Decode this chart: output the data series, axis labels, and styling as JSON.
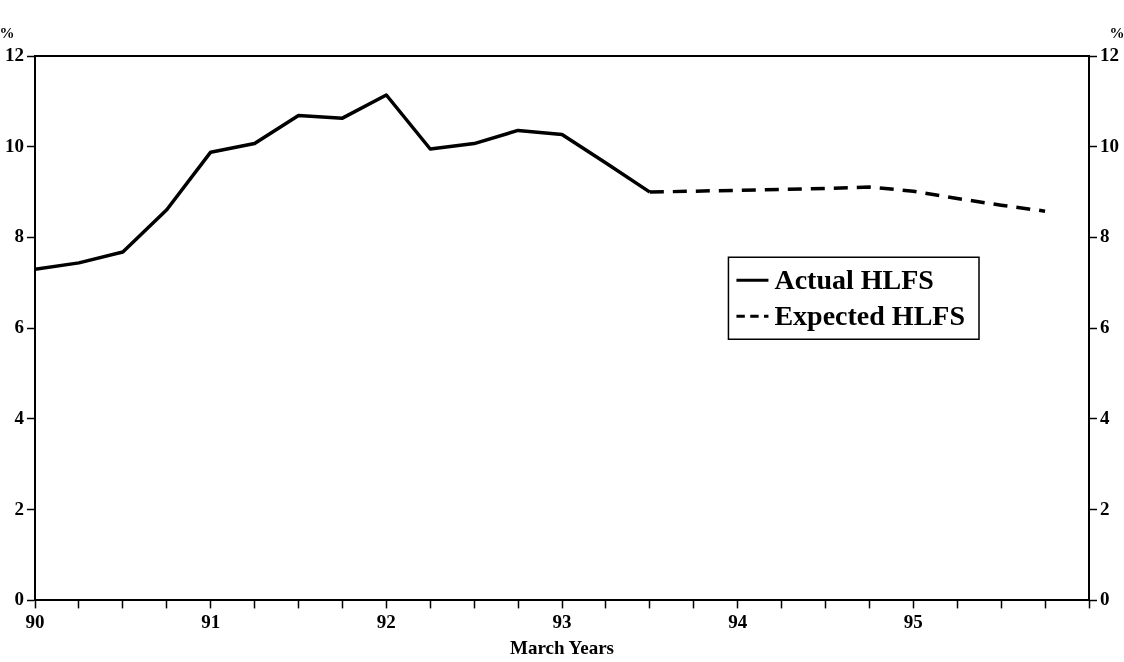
{
  "chart_data": {
    "type": "line",
    "xlabel": "March Years",
    "ylabel": "%",
    "y2label": "%",
    "xlim": [
      90,
      96
    ],
    "xticks": [
      90,
      {
        "value": 90.25,
        "label": null
      },
      {
        "value": 90.5,
        "label": null
      },
      {
        "value": 90.75,
        "label": null
      },
      91,
      {
        "value": 91.25,
        "label": null
      },
      {
        "value": 91.5,
        "label": null
      },
      {
        "value": 91.75,
        "label": null
      },
      92,
      {
        "value": 92.25,
        "label": null
      },
      {
        "value": 92.5,
        "label": null
      },
      {
        "value": 92.75,
        "label": null
      },
      93,
      {
        "value": 93.25,
        "label": null
      },
      {
        "value": 93.5,
        "label": null
      },
      {
        "value": 93.75,
        "label": null
      },
      94,
      {
        "value": 94.25,
        "label": null
      },
      {
        "value": 94.5,
        "label": null
      },
      {
        "value": 94.75,
        "label": null
      },
      95,
      {
        "value": 95.25,
        "label": null
      },
      {
        "value": 95.5,
        "label": null
      },
      {
        "value": 95.75,
        "label": null
      },
      {
        "value": 96,
        "label": null
      }
    ],
    "ylim": [
      0,
      12
    ],
    "yticks": [
      0,
      2,
      4,
      6,
      8,
      10,
      12
    ],
    "y2lim": [
      0,
      12
    ],
    "y2ticks": [
      0,
      2,
      4,
      6,
      8,
      10,
      12
    ],
    "grid": false,
    "legend": "right",
    "marker": "none",
    "series": [
      {
        "name": "Actual HLFS",
        "color": "#000000",
        "line_style": "solid",
        "x": [
          90,
          90.25,
          90.5,
          90.75,
          91,
          91.25,
          91.5,
          91.75,
          92,
          92.25,
          92.5,
          92.75,
          93,
          93.25,
          93.5
        ],
        "values": [
          7.3,
          7.44,
          7.68,
          8.61,
          9.88,
          10.07,
          10.69,
          10.63,
          11.14,
          9.95,
          10.07,
          10.36,
          10.27,
          9.64,
          9.0
        ]
      },
      {
        "name": "Expected HLFS",
        "color": "#000000",
        "line_style": "dashed",
        "x": [
          93.5,
          93.75,
          94,
          94.25,
          94.5,
          94.75,
          95,
          95.25,
          95.5,
          95.75
        ],
        "values": [
          9.0,
          9.02,
          9.04,
          9.06,
          9.08,
          9.11,
          9.02,
          8.86,
          8.71,
          8.58
        ]
      }
    ]
  }
}
